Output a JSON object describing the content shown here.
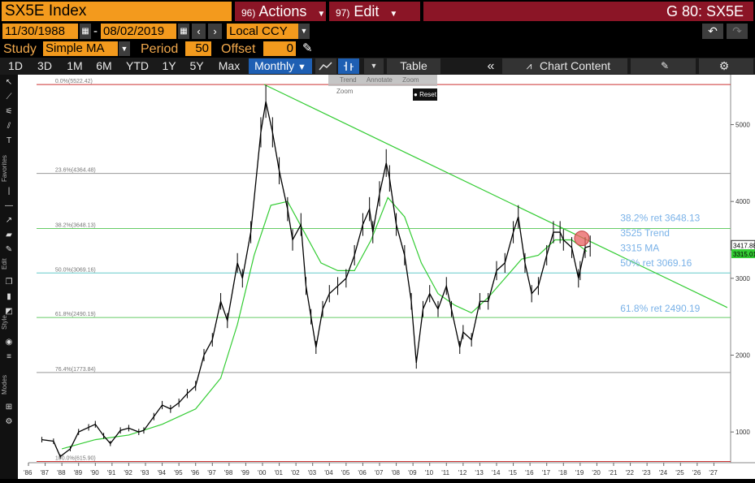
{
  "header": {
    "ticker": "SX5E Index",
    "actions": {
      "num": "96)",
      "label": "Actions"
    },
    "edit": {
      "num": "97)",
      "label": "Edit"
    },
    "graph_title": "G 80: SX5E"
  },
  "range": {
    "start": "11/30/1988",
    "dash": "-",
    "end": "08/02/2019",
    "currency": "Local CCY"
  },
  "study": {
    "label": "Study",
    "type": "Simple MA",
    "period_label": "Period",
    "period": "50",
    "offset_label": "Offset",
    "offset": "0"
  },
  "toolbar": {
    "ranges": [
      "1D",
      "3D",
      "1M",
      "6M",
      "YTD",
      "1Y",
      "5Y",
      "Max"
    ],
    "frequency": "Monthly",
    "table": "Table",
    "chart_content": "Chart Content"
  },
  "popup": {
    "items": [
      "Trend",
      "Annotate",
      "Zoom",
      "Zoom"
    ],
    "reset": "Reset"
  },
  "left_labels": [
    "Favorites",
    "Edit",
    "Style",
    "Modes"
  ],
  "colors": {
    "accent_orange": "#f39a1d",
    "header_red": "#8b1526",
    "selected_blue": "#1e5fb3",
    "price_line": "#000000",
    "ma_line": "#33cc33",
    "trend_line": "#33cc33",
    "fib_green": "#66cc66",
    "fib_cyan": "#66cccc",
    "fib_red": "#cc3333",
    "fib_gray": "#999999",
    "annotation_blue": "#7ab2e8",
    "highlight_circle": "#e86060"
  },
  "chart_data": {
    "type": "line",
    "title": "",
    "xlabel": "",
    "ylabel": "",
    "x_range": [
      1986,
      2028
    ],
    "ylim": [
      600,
      5650
    ],
    "x_tick_labels": [
      "'86",
      "'87",
      "'88",
      "'89",
      "'90",
      "'91",
      "'92",
      "'93",
      "'94",
      "'95",
      "'96",
      "'97",
      "'98",
      "'99",
      "'00",
      "'01",
      "'02",
      "'03",
      "'04",
      "'05",
      "'06",
      "'07",
      "'08",
      "'09",
      "'10",
      "'11",
      "'12",
      "'13",
      "'14",
      "'15",
      "'16",
      "'17",
      "'18",
      "'19",
      "'20",
      "'21",
      "'22",
      "'23",
      "'24",
      "'25",
      "'26",
      "'27"
    ],
    "y_ticks": [
      1000,
      2000,
      3000,
      4000,
      5000
    ],
    "y_tick_labels": [
      "1000",
      "2000",
      "3000",
      "4000",
      "5000"
    ],
    "last_price_label": "3417.88",
    "ma_value_label": "3315.01",
    "series": [
      {
        "name": "SX5E",
        "x": [
          1986.8,
          1987.5,
          1987.9,
          1988.5,
          1989.0,
          1989.6,
          1990.0,
          1990.5,
          1990.9,
          1991.5,
          1992.0,
          1992.6,
          1992.9,
          1993.5,
          1994.0,
          1994.5,
          1995.0,
          1995.5,
          1996.0,
          1996.5,
          1997.0,
          1997.5,
          1997.9,
          1998.5,
          1998.8,
          1999.3,
          1999.9,
          2000.2,
          2000.6,
          2001.0,
          2001.5,
          2001.8,
          2002.3,
          2002.6,
          2002.9,
          2003.2,
          2003.6,
          2004.0,
          2004.5,
          2005.0,
          2005.5,
          2006.0,
          2006.4,
          2006.6,
          2007.0,
          2007.4,
          2007.6,
          2008.0,
          2008.5,
          2008.9,
          2009.2,
          2009.6,
          2010.0,
          2010.5,
          2011.0,
          2011.3,
          2011.8,
          2012.0,
          2012.5,
          2013.0,
          2013.5,
          2014.0,
          2014.5,
          2015.0,
          2015.3,
          2015.7,
          2016.1,
          2016.5,
          2017.0,
          2017.4,
          2017.8,
          2018.0,
          2018.5,
          2018.9,
          2019.0,
          2019.3,
          2019.6
        ],
        "y": [
          900,
          880,
          680,
          780,
          1000,
          1060,
          1100,
          950,
          850,
          1020,
          1050,
          1000,
          1020,
          1200,
          1350,
          1300,
          1380,
          1500,
          1600,
          2000,
          2200,
          2700,
          2450,
          3200,
          3000,
          3600,
          4900,
          5300,
          4900,
          4400,
          3900,
          3500,
          3700,
          2900,
          2500,
          2100,
          2600,
          2800,
          2900,
          3000,
          3300,
          3700,
          3900,
          3600,
          4100,
          4500,
          4300,
          3700,
          3300,
          2700,
          1900,
          2600,
          2800,
          2600,
          2900,
          2600,
          2100,
          2300,
          2200,
          2700,
          2700,
          3100,
          3200,
          3600,
          3800,
          3200,
          2800,
          2900,
          3300,
          3600,
          3600,
          3500,
          3400,
          3000,
          3100,
          3400,
          3420
        ]
      },
      {
        "name": "",
        "x": [
          1988.0,
          1990.0,
          1992.0,
          1994.0,
          1996.0,
          1997.5,
          1998.5,
          1999.5,
          2000.5,
          2001.5,
          2002.5,
          2003.5,
          2004.5,
          2005.5,
          2006.5,
          2007.5,
          2008.5,
          2009.5,
          2010.5,
          2011.5,
          2012.5,
          2013.5,
          2014.5,
          2015.5,
          2016.5,
          2017.5,
          2018.5,
          2019.4
        ],
        "y": [
          780,
          900,
          960,
          1100,
          1300,
          1700,
          2400,
          3300,
          3950,
          4000,
          3600,
          3200,
          3100,
          3100,
          3500,
          4050,
          3800,
          3200,
          2800,
          2650,
          2550,
          2750,
          3000,
          3250,
          3300,
          3500,
          3500,
          3350
        ]
      }
    ],
    "fib_levels": [
      {
        "label": "0.0%(5522.42)",
        "value": 5522.42,
        "color": "#cc3333"
      },
      {
        "label": "23.6%(4364.48)",
        "value": 4364.48,
        "color": "#999999"
      },
      {
        "label": "38.2%(3648.13)",
        "value": 3648.13,
        "color": "#66cc66"
      },
      {
        "label": "50.0%(3069.16)",
        "value": 3069.16,
        "color": "#66cccc"
      },
      {
        "label": "61.8%(2490.19)",
        "value": 2490.19,
        "color": "#66cc66"
      },
      {
        "label": "76.4%(1773.84)",
        "value": 1773.84,
        "color": "#999999"
      },
      {
        "label": "100.0%(615.90)",
        "value": 615.9,
        "color": "#cc3333"
      }
    ],
    "trendline": {
      "x": [
        2000.1,
        2027.8
      ],
      "y": [
        5522,
        2620
      ]
    },
    "highlight": {
      "x": 2019.1,
      "y": 3520
    },
    "annotations": [
      {
        "text": "38.2% ret 3648.13",
        "x": 2021.4,
        "y": 3745
      },
      {
        "text": "3525 Trend",
        "x": 2021.4,
        "y": 3548
      },
      {
        "text": "3315 MA",
        "x": 2021.4,
        "y": 3350
      },
      {
        "text": "50% ret 3069.16",
        "x": 2021.4,
        "y": 3155
      },
      {
        "text": "61.8% ret 2490.19",
        "x": 2021.4,
        "y": 2565
      }
    ]
  }
}
